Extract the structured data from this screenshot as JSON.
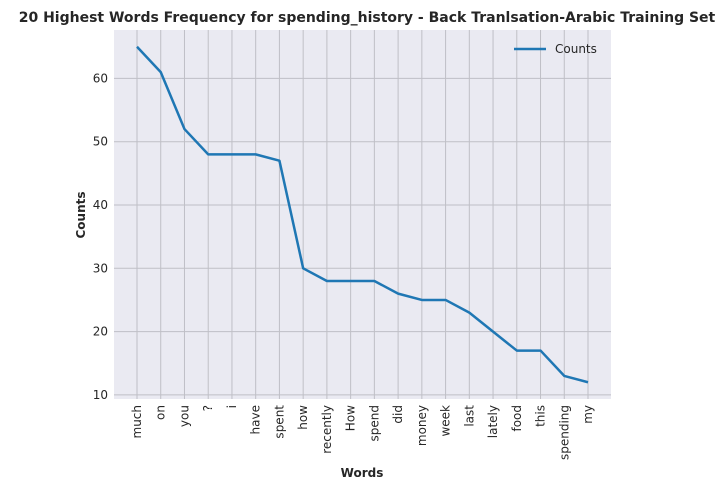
{
  "chart_data": {
    "type": "line",
    "title": "20 Highest Words Frequency for spending_history - Back Tranlsation-Arabic Training Set",
    "xlabel": "Words",
    "ylabel": "Counts",
    "categories": [
      "much",
      "on",
      "you",
      "?",
      "i",
      "have",
      "spent",
      "how",
      "recently",
      "How",
      "spend",
      "did",
      "money",
      "week",
      "last",
      "lately",
      "food",
      "this",
      "spending",
      "my"
    ],
    "series": [
      {
        "name": "Counts",
        "values": [
          65,
          61,
          52,
          48,
          48,
          48,
          47,
          30,
          28,
          28,
          28,
          26,
          25,
          25,
          23,
          20,
          17,
          17,
          13,
          12
        ],
        "color": "#1f77b4"
      }
    ],
    "yticks": [
      10,
      20,
      30,
      40,
      50,
      60
    ],
    "ylim": [
      9.35,
      67.65
    ],
    "grid": true,
    "legend_position": "upper-right",
    "background": "#eaeaf2",
    "grid_color": "#bfbfc6"
  }
}
